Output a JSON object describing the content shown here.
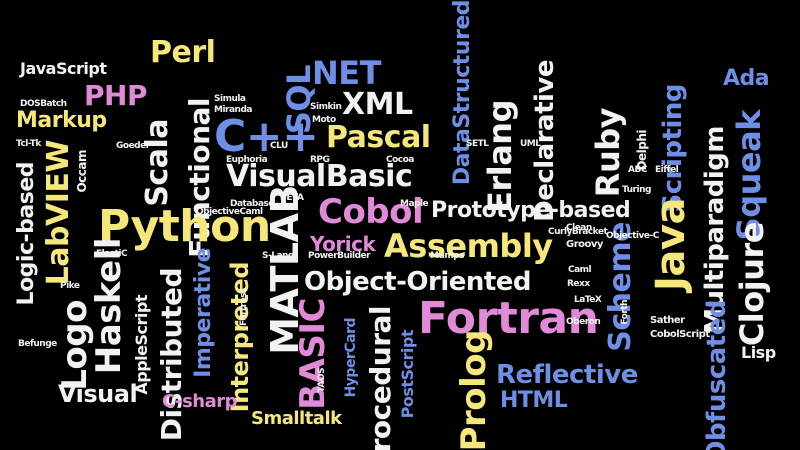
{
  "palette": {
    "background": "#000000",
    "white": "#f2f2f2",
    "yellow": "#f5e77a",
    "pink": "#e08ad8",
    "blue": "#6f8fe6",
    "grey": "#8a8fa0"
  },
  "cloud": {
    "words": [
      {
        "text": "JavaScript",
        "color": "white"
      },
      {
        "text": "Perl",
        "color": "yellow"
      },
      {
        "text": "NET",
        "color": "blue"
      },
      {
        "text": "PHP",
        "color": "pink"
      },
      {
        "text": "XML",
        "color": "white"
      },
      {
        "text": "SQL",
        "color": "blue"
      },
      {
        "text": "Ada",
        "color": "blue"
      },
      {
        "text": "Markup",
        "color": "yellow"
      },
      {
        "text": "Scala",
        "color": "white"
      },
      {
        "text": "Functional",
        "color": "white"
      },
      {
        "text": "C++",
        "color": "blue"
      },
      {
        "text": "Pascal",
        "color": "yellow"
      },
      {
        "text": "Erlang",
        "color": "white"
      },
      {
        "text": "Ruby",
        "color": "white"
      },
      {
        "text": "Declarative",
        "color": "white"
      },
      {
        "text": "DataStructured",
        "color": "blue"
      },
      {
        "text": "Scripting",
        "color": "blue"
      },
      {
        "text": "Squeak",
        "color": "blue"
      },
      {
        "text": "Multiparadigm",
        "color": "white"
      },
      {
        "text": "LabVIEW",
        "color": "yellow"
      },
      {
        "text": "Logic-based",
        "color": "white"
      },
      {
        "text": "VisualBasic",
        "color": "white"
      },
      {
        "text": "Python",
        "color": "yellow"
      },
      {
        "text": "Cobol",
        "color": "pink"
      },
      {
        "text": "Prototype-based",
        "color": "white"
      },
      {
        "text": "Java",
        "color": "yellow"
      },
      {
        "text": "Clojure",
        "color": "white"
      },
      {
        "text": "Assembly",
        "color": "yellow"
      },
      {
        "text": "Yorick",
        "color": "pink"
      },
      {
        "text": "MATLAB",
        "color": "white"
      },
      {
        "text": "Haskell",
        "color": "white"
      },
      {
        "text": "Object-Oriented",
        "color": "white"
      },
      {
        "text": "Fortran",
        "color": "pink"
      },
      {
        "text": "Scheme",
        "color": "blue"
      },
      {
        "text": "Logo",
        "color": "white"
      },
      {
        "text": "Distributed",
        "color": "white"
      },
      {
        "text": "Imperative",
        "color": "blue"
      },
      {
        "text": "Interpreted",
        "color": "yellow"
      },
      {
        "text": "BASIC",
        "color": "pink"
      },
      {
        "text": "Procedural",
        "color": "white"
      },
      {
        "text": "Prolog",
        "color": "yellow"
      },
      {
        "text": "Reflective",
        "color": "blue"
      },
      {
        "text": "HTML",
        "color": "blue"
      },
      {
        "text": "Obfuscated",
        "color": "blue"
      },
      {
        "text": "Lisp",
        "color": "white"
      },
      {
        "text": "Visual",
        "color": "white"
      },
      {
        "text": "C-sharp",
        "color": "pink"
      },
      {
        "text": "Smalltalk",
        "color": "yellow"
      },
      {
        "text": "AppleScript",
        "color": "white"
      },
      {
        "text": "PostScript",
        "color": "blue"
      },
      {
        "text": "HyperCard",
        "color": "blue"
      },
      {
        "text": "DOSBatch",
        "color": "white"
      },
      {
        "text": "Simula",
        "color": "white"
      },
      {
        "text": "Miranda",
        "color": "white"
      },
      {
        "text": "Occam",
        "color": "white"
      },
      {
        "text": "Euphoria",
        "color": "white"
      },
      {
        "text": "Database",
        "color": "white"
      },
      {
        "text": "Maple",
        "color": "white"
      },
      {
        "text": "Groovy",
        "color": "white"
      },
      {
        "text": "S-Lang",
        "color": "white"
      },
      {
        "text": "CobolScript",
        "color": "white"
      },
      {
        "text": "Sather",
        "color": "white"
      },
      {
        "text": "Eiffel",
        "color": "white"
      },
      {
        "text": "Clean",
        "color": "white"
      },
      {
        "text": "Oberon",
        "color": "white"
      },
      {
        "text": "Mumps",
        "color": "white"
      },
      {
        "text": "Caml",
        "color": "white"
      },
      {
        "text": "Befunge",
        "color": "white"
      },
      {
        "text": "CLU",
        "color": "white"
      },
      {
        "text": "Moto",
        "color": "white"
      },
      {
        "text": "Cocoa",
        "color": "white"
      },
      {
        "text": "ObjectiveCaml",
        "color": "white"
      },
      {
        "text": "CurlyBracket",
        "color": "white"
      },
      {
        "text": "PowerBuilder",
        "color": "white"
      },
      {
        "text": "RPG",
        "color": "white"
      },
      {
        "text": "BETA",
        "color": "white"
      },
      {
        "text": "ABC",
        "color": "white"
      },
      {
        "text": "Turing",
        "color": "white"
      },
      {
        "text": "Fortress",
        "color": "white"
      },
      {
        "text": "Delphi",
        "color": "white"
      },
      {
        "text": "LaTeX",
        "color": "white"
      },
      {
        "text": "UML",
        "color": "white"
      },
      {
        "text": "SETL",
        "color": "white"
      },
      {
        "text": "TAOS",
        "color": "white"
      },
      {
        "text": "Pike",
        "color": "white"
      },
      {
        "text": "ElastiC",
        "color": "white"
      },
      {
        "text": "Tcl-Tk",
        "color": "white"
      },
      {
        "text": "Goedel",
        "color": "white"
      },
      {
        "text": "Simkin",
        "color": "white"
      },
      {
        "text": "Rexx",
        "color": "white"
      },
      {
        "text": "Forth",
        "color": "white"
      },
      {
        "text": "Objective-C",
        "color": "white"
      }
    ]
  }
}
